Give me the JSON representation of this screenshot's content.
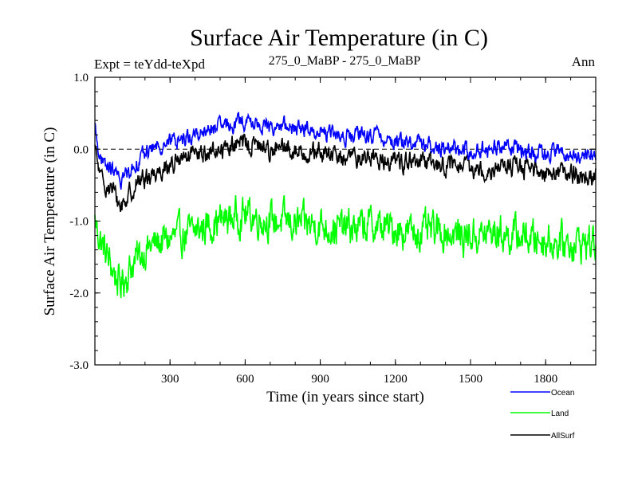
{
  "chart_data": {
    "type": "line",
    "title": "Surface Air Temperature (in C)",
    "subtitle_left": "Expt = teYdd-teXpd",
    "subtitle_center": "275_0_MaBP - 275_0_MaBP",
    "subtitle_right": "Ann",
    "xlabel": "Time (in years since start)",
    "ylabel": "Surface Air Temperature (in C)",
    "xlim": [
      0,
      2000
    ],
    "ylim": [
      -3.0,
      1.0
    ],
    "xticks": [
      300,
      600,
      900,
      1200,
      1500,
      1800
    ],
    "xtick_labels": [
      "300",
      "600",
      "900",
      "1200",
      "1500",
      "1800"
    ],
    "yticks": [
      -3.0,
      -2.0,
      -1.0,
      0.0,
      1.0
    ],
    "ytick_labels": [
      "-3.0",
      "-2.0",
      "-1.0",
      "0.0",
      "1.0"
    ],
    "reference_line": 0.0,
    "legend_position": "bottom-right, below plot",
    "series": [
      {
        "name": "Ocean",
        "color": "#0000ff",
        "x": [
          0,
          25,
          50,
          75,
          100,
          125,
          150,
          175,
          200,
          250,
          300,
          350,
          400,
          450,
          500,
          550,
          600,
          650,
          700,
          750,
          800,
          850,
          900,
          950,
          1000,
          1050,
          1100,
          1150,
          1200,
          1250,
          1300,
          1350,
          1400,
          1450,
          1500,
          1550,
          1600,
          1650,
          1700,
          1750,
          1800,
          1850,
          1900,
          1950,
          2000
        ],
        "values": [
          0.3,
          -0.2,
          -0.25,
          -0.3,
          -0.45,
          -0.35,
          -0.25,
          -0.15,
          -0.05,
          0.05,
          0.1,
          0.15,
          0.2,
          0.25,
          0.3,
          0.35,
          0.38,
          0.35,
          0.3,
          0.32,
          0.3,
          0.28,
          0.25,
          0.2,
          0.18,
          0.18,
          0.2,
          0.15,
          0.12,
          0.1,
          0.08,
          0.05,
          0.02,
          0.0,
          -0.02,
          0.0,
          0.02,
          0.05,
          0.0,
          -0.05,
          -0.05,
          -0.05,
          -0.08,
          -0.1,
          -0.1
        ],
        "noise": 0.09
      },
      {
        "name": "Land",
        "color": "#00ff00",
        "x": [
          0,
          25,
          50,
          75,
          100,
          125,
          150,
          175,
          200,
          250,
          300,
          350,
          400,
          450,
          500,
          550,
          600,
          650,
          700,
          750,
          800,
          850,
          900,
          950,
          1000,
          1050,
          1100,
          1150,
          1200,
          1250,
          1300,
          1350,
          1400,
          1450,
          1500,
          1550,
          1600,
          1650,
          1700,
          1750,
          1800,
          1850,
          1900,
          1950,
          2000
        ],
        "values": [
          -1.0,
          -1.3,
          -1.5,
          -1.7,
          -1.9,
          -1.75,
          -1.6,
          -1.5,
          -1.4,
          -1.3,
          -1.25,
          -1.2,
          -1.15,
          -1.05,
          -1.0,
          -0.95,
          -0.9,
          -0.95,
          -1.0,
          -1.0,
          -1.05,
          -1.05,
          -1.05,
          -1.1,
          -1.1,
          -1.1,
          -1.05,
          -1.1,
          -1.1,
          -1.15,
          -1.15,
          -1.15,
          -1.15,
          -1.2,
          -1.2,
          -1.2,
          -1.15,
          -1.2,
          -1.2,
          -1.25,
          -1.25,
          -1.3,
          -1.3,
          -1.3,
          -1.3
        ],
        "noise": 0.2
      },
      {
        "name": "AllSurf",
        "color": "#000000",
        "x": [
          0,
          25,
          50,
          75,
          100,
          125,
          150,
          175,
          200,
          250,
          300,
          350,
          400,
          450,
          500,
          550,
          600,
          650,
          700,
          750,
          800,
          850,
          900,
          950,
          1000,
          1050,
          1100,
          1150,
          1200,
          1250,
          1300,
          1350,
          1400,
          1450,
          1500,
          1550,
          1600,
          1650,
          1700,
          1750,
          1800,
          1850,
          1900,
          1950,
          2000
        ],
        "values": [
          0.0,
          -0.45,
          -0.5,
          -0.6,
          -0.8,
          -0.7,
          -0.55,
          -0.45,
          -0.4,
          -0.3,
          -0.22,
          -0.15,
          -0.1,
          -0.05,
          0.0,
          0.05,
          0.08,
          0.05,
          0.0,
          0.0,
          -0.02,
          -0.05,
          -0.05,
          -0.1,
          -0.12,
          -0.12,
          -0.1,
          -0.15,
          -0.15,
          -0.18,
          -0.2,
          -0.2,
          -0.22,
          -0.25,
          -0.28,
          -0.28,
          -0.25,
          -0.22,
          -0.25,
          -0.3,
          -0.3,
          -0.32,
          -0.35,
          -0.35,
          -0.4
        ],
        "noise": 0.11
      }
    ]
  }
}
